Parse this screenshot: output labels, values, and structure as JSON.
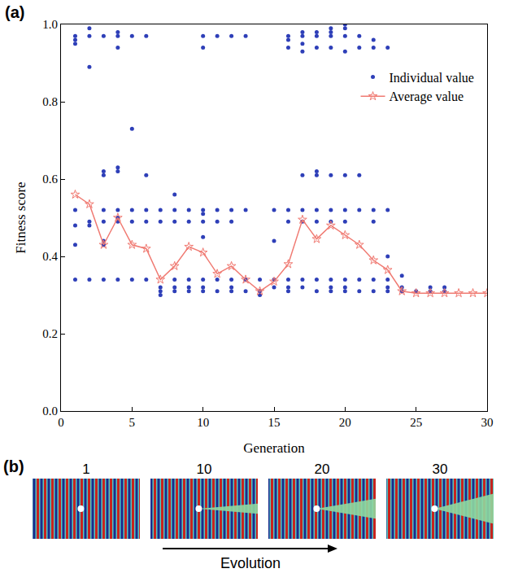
{
  "chart_data": {
    "type": "scatter",
    "x_label": "Generation",
    "y_label": "Fitness score",
    "xlim": [
      0,
      30
    ],
    "xticks": [
      0,
      5,
      10,
      15,
      20,
      25,
      30
    ],
    "ylim": [
      0,
      1
    ],
    "yticks": [
      {
        "value": 0,
        "label": "0.0"
      },
      {
        "value": 0.2,
        "label": "0.2"
      },
      {
        "value": 0.4,
        "label": "0.4"
      },
      {
        "value": 0.6,
        "label": "0.6"
      },
      {
        "value": 0.8,
        "label": "0.8"
      },
      {
        "value": 1,
        "label": "1.0"
      }
    ],
    "grid": false,
    "legend": "upper right",
    "series": [
      {
        "name": "Individual value",
        "type": "scatter",
        "marker": "circle",
        "color": "#2e3fb8",
        "x": [
          1,
          1,
          1,
          1,
          1,
          1,
          1,
          2,
          2,
          2,
          2,
          2,
          2,
          3,
          3,
          3,
          3,
          3,
          3,
          3,
          3,
          4,
          4,
          4,
          4,
          4,
          4,
          4,
          4,
          4,
          5,
          5,
          5,
          5,
          5,
          6,
          6,
          6,
          6,
          6,
          7,
          7,
          7,
          7,
          7,
          8,
          8,
          8,
          8,
          8,
          8,
          9,
          9,
          9,
          9,
          9,
          10,
          10,
          10,
          10,
          10,
          10,
          10,
          10,
          10,
          11,
          11,
          11,
          11,
          11,
          12,
          12,
          12,
          12,
          12,
          12,
          13,
          13,
          13,
          13,
          14,
          14,
          14,
          15,
          15,
          15,
          15,
          16,
          16,
          16,
          16,
          16,
          16,
          16,
          16,
          17,
          17,
          17,
          17,
          17,
          17,
          17,
          17,
          17,
          18,
          18,
          18,
          18,
          18,
          18,
          18,
          18,
          18,
          19,
          19,
          19,
          19,
          19,
          19,
          19,
          19,
          19,
          19,
          20,
          20,
          20,
          20,
          20,
          20,
          20,
          20,
          20,
          20,
          21,
          21,
          21,
          21,
          21,
          21,
          22,
          22,
          22,
          22,
          22,
          22,
          23,
          23,
          23,
          23,
          23,
          23,
          24,
          24,
          24,
          25,
          26,
          26,
          27,
          27
        ],
        "values": [
          0.97,
          0.96,
          0.95,
          0.52,
          0.48,
          0.43,
          0.34,
          0.99,
          0.97,
          0.89,
          0.49,
          0.48,
          0.34,
          0.97,
          0.62,
          0.61,
          0.52,
          0.49,
          0.44,
          0.43,
          0.34,
          0.98,
          0.97,
          0.94,
          0.63,
          0.62,
          0.52,
          0.5,
          0.49,
          0.34,
          0.97,
          0.73,
          0.52,
          0.49,
          0.34,
          0.97,
          0.61,
          0.52,
          0.49,
          0.34,
          0.52,
          0.49,
          0.32,
          0.31,
          0.3,
          0.56,
          0.52,
          0.49,
          0.34,
          0.32,
          0.31,
          0.52,
          0.49,
          0.34,
          0.32,
          0.31,
          0.97,
          0.94,
          0.52,
          0.51,
          0.49,
          0.45,
          0.34,
          0.32,
          0.31,
          0.97,
          0.52,
          0.49,
          0.34,
          0.31,
          0.97,
          0.52,
          0.49,
          0.34,
          0.32,
          0.31,
          0.97,
          0.52,
          0.34,
          0.31,
          0.34,
          0.31,
          0.3,
          0.52,
          0.44,
          0.34,
          0.32,
          0.97,
          0.96,
          0.94,
          0.52,
          0.49,
          0.34,
          0.32,
          0.31,
          0.98,
          0.97,
          0.95,
          0.93,
          0.61,
          0.52,
          0.49,
          0.34,
          0.32,
          0.98,
          0.97,
          0.94,
          0.62,
          0.61,
          0.52,
          0.49,
          0.34,
          0.31,
          0.99,
          0.98,
          0.97,
          0.94,
          0.61,
          0.52,
          0.49,
          0.34,
          0.32,
          0.31,
          1.0,
          0.99,
          0.97,
          0.93,
          0.61,
          0.52,
          0.49,
          0.34,
          0.32,
          0.31,
          0.97,
          0.94,
          0.61,
          0.52,
          0.34,
          0.31,
          0.96,
          0.94,
          0.52,
          0.49,
          0.34,
          0.31,
          0.94,
          0.52,
          0.4,
          0.34,
          0.32,
          0.31,
          0.35,
          0.32,
          0.31,
          0.31,
          0.32,
          0.31,
          0.32,
          0.31
        ]
      },
      {
        "name": "Average value",
        "type": "line",
        "marker": "star",
        "line_style": "solid",
        "color": "#f07a72",
        "x": [
          1,
          2,
          3,
          4,
          5,
          6,
          7,
          8,
          9,
          10,
          11,
          12,
          13,
          14,
          15,
          16,
          17,
          18,
          19,
          20,
          21,
          22,
          23,
          24,
          25,
          26,
          27,
          28,
          29,
          30
        ],
        "values": [
          0.56,
          0.535,
          0.43,
          0.5,
          0.43,
          0.42,
          0.34,
          0.375,
          0.425,
          0.41,
          0.355,
          0.375,
          0.34,
          0.31,
          0.335,
          0.38,
          0.495,
          0.445,
          0.48,
          0.455,
          0.43,
          0.39,
          0.365,
          0.31,
          0.305,
          0.305,
          0.305,
          0.305,
          0.305,
          0.305
        ]
      }
    ]
  },
  "panel_labels": [
    "(a)",
    "(b)"
  ],
  "evolution": {
    "frames": [
      1,
      10,
      20,
      30
    ],
    "caption": "Evolution"
  }
}
